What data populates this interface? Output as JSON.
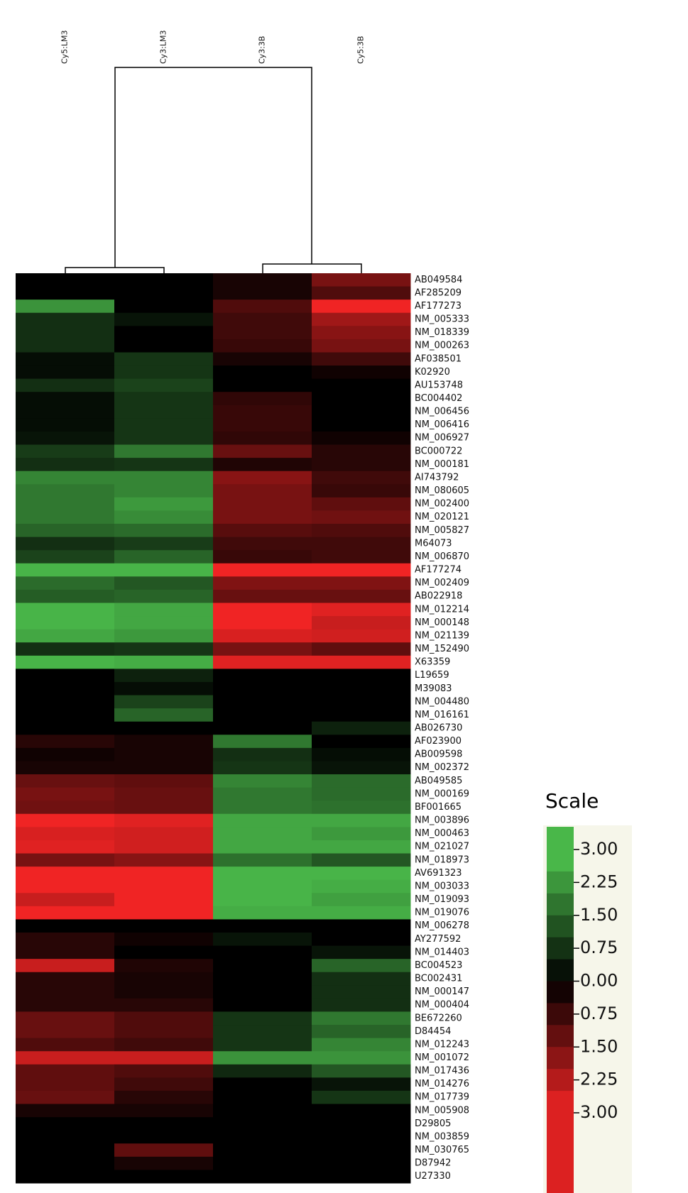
{
  "chart_data": {
    "type": "heatmap",
    "colormap": {
      "high": "#50c850",
      "mid": "#000000",
      "low": "#f02424"
    },
    "categories": [
      "AB049584",
      "AF285209",
      "AF177273",
      "NM_005333",
      "NM_018339",
      "NM_000263",
      "AF038501",
      "K02920",
      "AU153748",
      "BC004402",
      "NM_006456",
      "NM_006416",
      "NM_006927",
      "BC000722",
      "NM_000181",
      "AI743792",
      "NM_080605",
      "NM_002400",
      "NM_020121",
      "NM_005827",
      "M64073",
      "NM_006870",
      "AF177274",
      "NM_002409",
      "AB022918",
      "NM_012214",
      "NM_000148",
      "NM_021139",
      "NM_152490",
      "X63359",
      "L19659",
      "M39083",
      "NM_004480",
      "NM_016161",
      "AB026730",
      "AF023900",
      "AB009598",
      "NM_002372",
      "AB049585",
      "NM_000169",
      "BF001665",
      "NM_003896",
      "NM_000463",
      "NM_021027",
      "NM_018973",
      "AV691323",
      "NM_003033",
      "NM_019093",
      "NM_019076",
      "NM_006278",
      "AY277592",
      "NM_014403",
      "BC004523",
      "BC002431",
      "NM_000147",
      "NM_000404",
      "BE672260",
      "D84454",
      "NM_012243",
      "NM_001072",
      "NM_017436",
      "NM_014276",
      "NM_017739",
      "NM_005908",
      "D29805",
      "NM_003859",
      "NM_030765",
      "D87942",
      "U27330"
    ],
    "series": [
      {
        "name": "Cy5:LM3",
        "values": [
          0,
          0,
          2.2,
          0.7,
          0.7,
          0.7,
          0.2,
          0.2,
          0.7,
          0.2,
          0.2,
          0.2,
          0.3,
          0.9,
          0.7,
          2,
          1.8,
          1.8,
          1.8,
          1.5,
          0.7,
          1,
          2.7,
          1.6,
          1.4,
          2.7,
          2.7,
          2.5,
          0.7,
          2.7,
          0,
          0,
          0,
          0,
          0,
          -0.5,
          -0.2,
          -0.3,
          -1.3,
          -1.5,
          -1.4,
          -3,
          -2.7,
          -2.8,
          -1.5,
          -3,
          -3,
          -2.5,
          -3,
          0,
          -0.5,
          -0.5,
          -2.5,
          -0.5,
          -0.5,
          -0.5,
          -1.3,
          -1.3,
          -1,
          -2.5,
          -1.2,
          -1.2,
          -1.3,
          -0.3,
          0,
          0,
          0,
          0,
          0
        ]
      },
      {
        "name": "Cy3:LM3",
        "values": [
          0,
          0,
          0,
          0.3,
          0,
          0,
          0.8,
          0.8,
          1,
          0.8,
          0.8,
          0.8,
          0.8,
          1.8,
          0.8,
          2,
          2,
          2.3,
          2.1,
          1.6,
          0.9,
          1.5,
          2.7,
          1.3,
          1.5,
          2.5,
          2.5,
          2.3,
          0.8,
          2.6,
          0.5,
          0.2,
          1,
          1.5,
          0,
          -0.3,
          -0.3,
          -0.3,
          -1.2,
          -1.3,
          -1.3,
          -2.8,
          -2.6,
          -2.6,
          -1.7,
          -3,
          -3,
          -3,
          -3,
          0,
          -0.2,
          0,
          -0.4,
          -0.3,
          -0.3,
          -0.5,
          -1,
          -1,
          -0.8,
          -2.5,
          -1,
          -0.8,
          -0.5,
          -0.3,
          0,
          0,
          -1.2,
          -0.3,
          0
        ]
      },
      {
        "name": "Cy3:3B",
        "values": [
          -0.3,
          -0.3,
          -1,
          -0.8,
          -0.8,
          -0.7,
          -0.3,
          0,
          0,
          -0.6,
          -0.7,
          -0.7,
          -0.6,
          -1.3,
          -0.4,
          -1.7,
          -1.5,
          -1.5,
          -1.5,
          -1.1,
          -0.8,
          -0.7,
          -3,
          -1.6,
          -1.3,
          -3,
          -3,
          -2.7,
          -1.5,
          -2.8,
          0,
          0,
          0,
          0,
          0,
          1.8,
          0.7,
          0.8,
          2,
          1.8,
          1.8,
          2.5,
          2.5,
          2.5,
          1.7,
          2.7,
          2.7,
          2.7,
          2.6,
          0,
          0.3,
          0,
          0,
          0,
          0,
          0,
          0.8,
          0.8,
          0.8,
          2.2,
          0.6,
          0,
          0,
          0,
          0,
          0,
          0,
          0,
          0
        ]
      },
      {
        "name": "Cy5:3B",
        "values": [
          -1.5,
          -1,
          -3,
          -2,
          -1.7,
          -1.5,
          -0.8,
          -0.2,
          0,
          0,
          0,
          0,
          -0.2,
          -0.5,
          -0.5,
          -0.8,
          -0.7,
          -1.2,
          -1.4,
          -1,
          -0.8,
          -0.8,
          -3,
          -1.6,
          -1.3,
          -2.8,
          -2.5,
          -2.6,
          -1.2,
          -2.8,
          0,
          0,
          0,
          0,
          0.5,
          0,
          0.2,
          0.3,
          1.6,
          1.6,
          1.7,
          2.5,
          2.3,
          2.5,
          1.3,
          2.7,
          2.6,
          2.4,
          2.6,
          0,
          0,
          0.3,
          1.5,
          0.7,
          0.7,
          0.7,
          1.8,
          1.5,
          2,
          2.2,
          1.3,
          0.3,
          0.8,
          0,
          0,
          0,
          0,
          0,
          0
        ]
      }
    ],
    "colorbar_title": "Scale",
    "colorbar_ticks": [
      {
        "value": 3,
        "label": "3.00"
      },
      {
        "value": 2.25,
        "label": "2.25"
      },
      {
        "value": 1.5,
        "label": "1.50"
      },
      {
        "value": 0.75,
        "label": "0.75"
      },
      {
        "value": 0,
        "label": "0.00"
      },
      {
        "value": -0.75,
        "label": "0.75"
      },
      {
        "value": -1.5,
        "label": "1.50"
      },
      {
        "value": -2.25,
        "label": "2.25"
      },
      {
        "value": -3,
        "label": "3.00"
      }
    ]
  }
}
